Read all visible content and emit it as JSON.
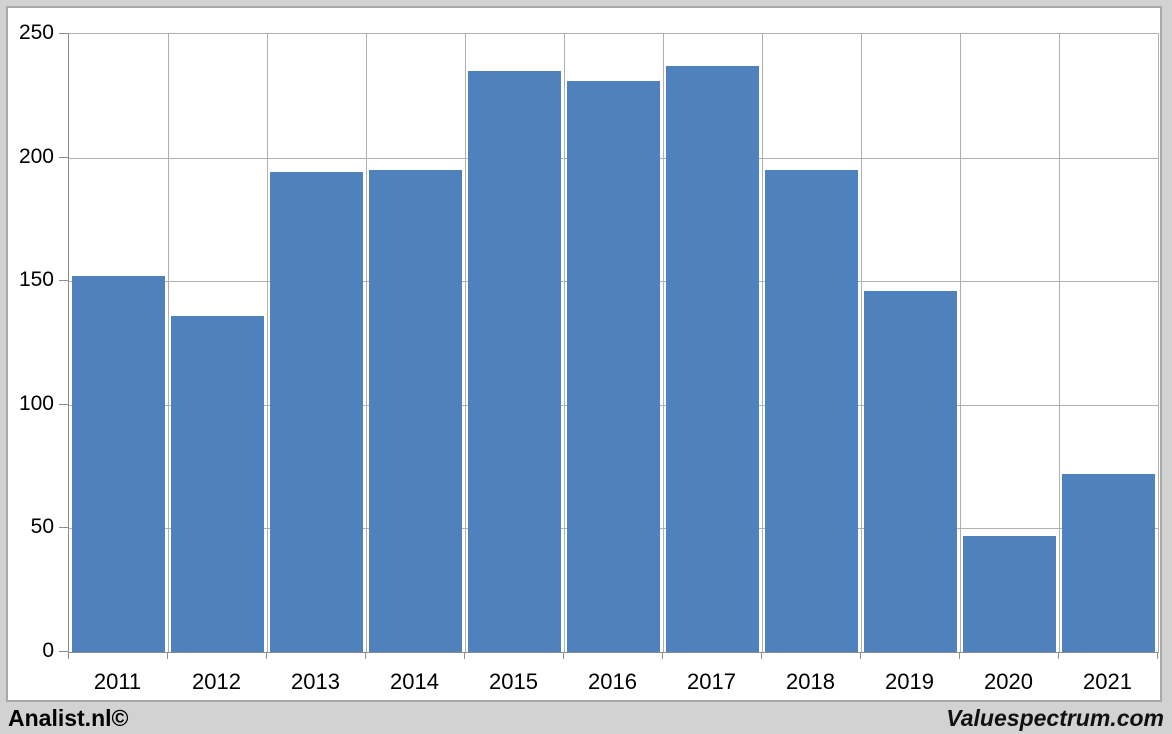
{
  "chart_data": {
    "type": "bar",
    "categories": [
      "2011",
      "2012",
      "2013",
      "2014",
      "2015",
      "2016",
      "2017",
      "2018",
      "2019",
      "2020",
      "2021"
    ],
    "values": [
      152,
      136,
      194,
      195,
      235,
      231,
      237,
      195,
      146,
      47,
      72
    ],
    "title": "",
    "xlabel": "",
    "ylabel": "",
    "ylim": [
      0,
      250
    ],
    "y_ticks": [
      0,
      50,
      100,
      150,
      200,
      250
    ],
    "grid": true,
    "legend": "none",
    "bar_color": "#4F81BD",
    "gridline_color": "#B0B0B0",
    "axis_color": "#8C8C8C",
    "plot_background": "#FFFFFF"
  },
  "footer": {
    "left_brand": "Analist.nl©",
    "right_brand": "Valuespectrum.com"
  },
  "colors": {
    "page_background": "#D2D2D2",
    "panel_border": "#A8A8A8"
  }
}
